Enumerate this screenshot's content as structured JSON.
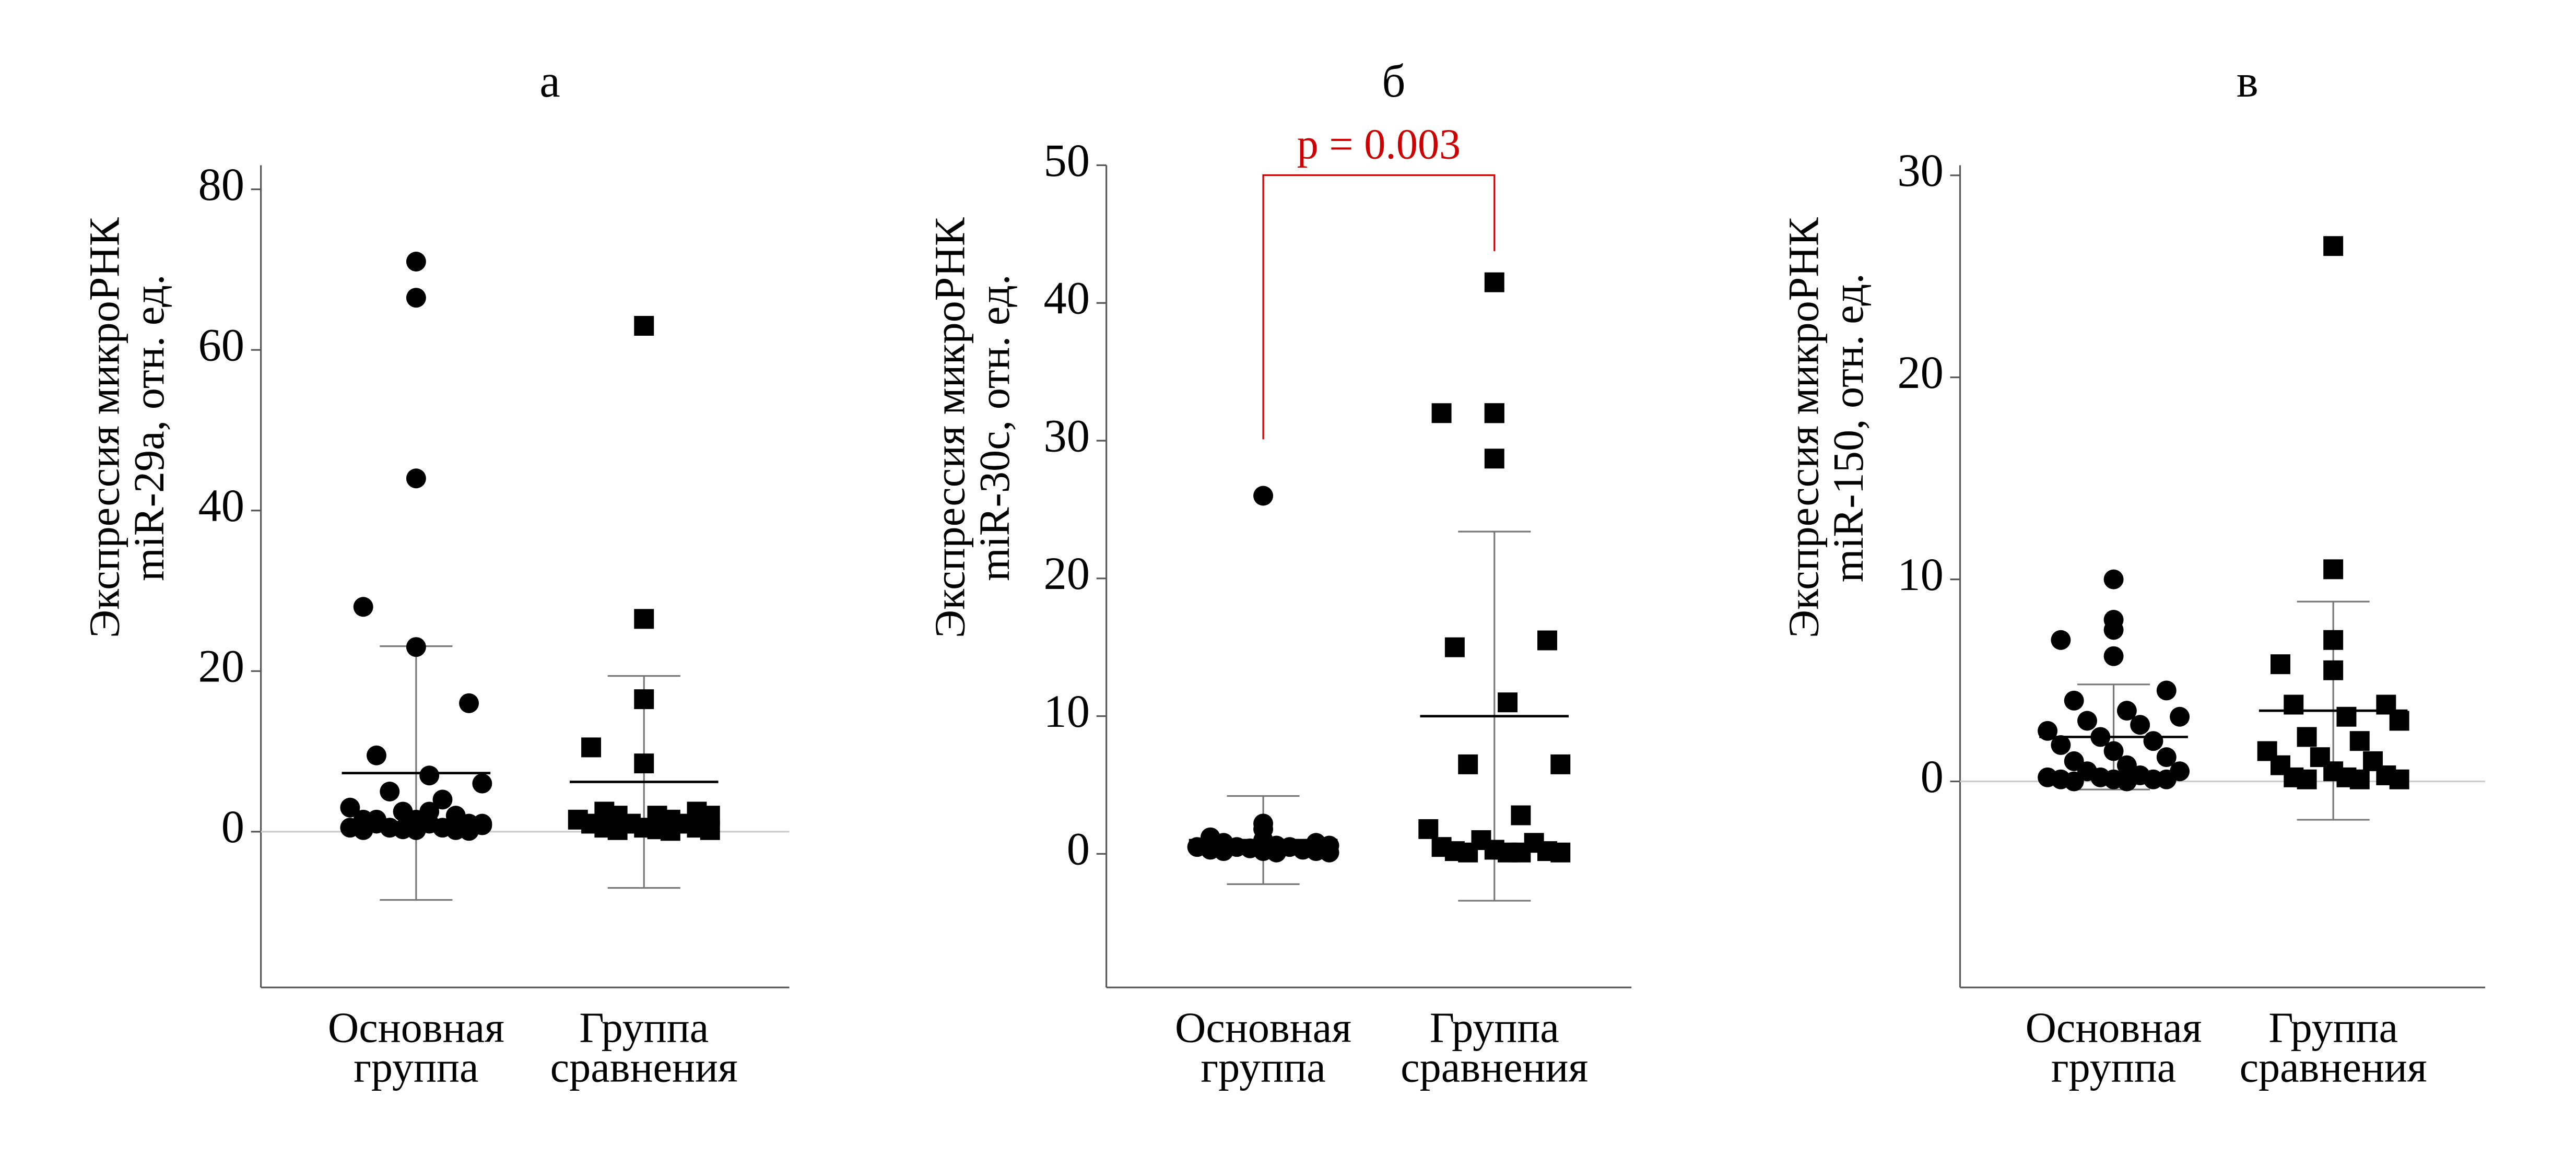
{
  "chart_data": [
    {
      "type": "strip",
      "title": "а",
      "ylabel": [
        "Экспрессия микроРНК",
        "miR-29a, отн. ед."
      ],
      "categories": [
        [
          "Основная",
          "группа"
        ],
        [
          "Группа",
          "сравнения"
        ]
      ],
      "ylim": [
        -19.4,
        83
      ],
      "yticks": [
        0,
        20,
        40,
        60,
        80
      ],
      "zero_line": true,
      "series": [
        {
          "marker": "circle",
          "color": "#000000",
          "mean": 7.3,
          "sd": 15.8,
          "values": [
            71,
            66.5,
            44,
            28,
            23,
            16,
            9.5,
            7,
            6,
            5,
            4,
            3,
            2.5,
            2,
            1.5,
            1.5,
            1,
            1,
            1,
            0.8,
            0.5,
            0.5,
            0.5,
            0.3,
            0.2,
            0.2,
            0.2,
            0.1,
            1.5,
            2.5,
            1,
            0.5
          ]
        },
        {
          "marker": "square",
          "color": "#000000",
          "mean": 6.2,
          "sd": 13.2,
          "values": [
            63,
            26.5,
            16.5,
            10.5,
            8.5,
            2.5,
            2.5,
            2,
            2,
            2,
            1.5,
            1.5,
            1,
            1,
            1,
            0.5,
            0.5,
            0.5,
            0.3,
            0.2,
            0.2,
            0.1
          ]
        }
      ]
    },
    {
      "type": "strip",
      "title": "б",
      "ylabel": [
        "Экспрессия микроРНК",
        "miR-30c, отн. ед."
      ],
      "categories": [
        [
          "Основная",
          "группа"
        ],
        [
          "Группа",
          "сравнения"
        ]
      ],
      "ylim": [
        -9.7,
        50
      ],
      "yticks": [
        0,
        10,
        20,
        30,
        40,
        50
      ],
      "zero_line": false,
      "annotation": {
        "text": "p = 0.003",
        "color": "#cc0000"
      },
      "series": [
        {
          "marker": "circle",
          "color": "#000000",
          "mean": 1,
          "sd": 3.2,
          "values": [
            26,
            2.2,
            1.8,
            1.2,
            1,
            0.8,
            0.8,
            0.6,
            0.6,
            0.5,
            0.5,
            0.5,
            0.4,
            0.3,
            0.3,
            0.2,
            0.2,
            0.2,
            0.1,
            0.1
          ]
        },
        {
          "marker": "square",
          "color": "#000000",
          "mean": 10,
          "sd": 13.4,
          "values": [
            41.5,
            32,
            32,
            32,
            28.7,
            15.5,
            15,
            11,
            6.5,
            6.5,
            2.8,
            1.8,
            1,
            0.8,
            0.5,
            0.3,
            0.2,
            0.2,
            0.1,
            0.1,
            0.1,
            0.1
          ]
        }
      ]
    },
    {
      "type": "strip",
      "title": "в",
      "ylabel": [
        "Экспрессия микроРНК",
        "miR-150, отн. ед."
      ],
      "categories": [
        [
          "Основная",
          "группа"
        ],
        [
          "Группа",
          "сравнения"
        ]
      ],
      "ylim": [
        -10.2,
        30.5
      ],
      "yticks": [
        0,
        10,
        20,
        30
      ],
      "zero_line": true,
      "series": [
        {
          "marker": "circle",
          "color": "#000000",
          "mean": 2.2,
          "sd": 2.6,
          "values": [
            10,
            8,
            7.5,
            7,
            6.2,
            4.5,
            4,
            3.5,
            3.2,
            3,
            2.8,
            2.5,
            2.2,
            2,
            1.8,
            1.5,
            1.2,
            1,
            0.8,
            0.5,
            0.5,
            0.3,
            0.2,
            0.2,
            0.1,
            0.1,
            0.1,
            0.1,
            0,
            0
          ]
        },
        {
          "marker": "square",
          "color": "#000000",
          "mean": 3.5,
          "sd": 5.4,
          "values": [
            26.5,
            10.5,
            7,
            5.8,
            5.5,
            3.8,
            3.8,
            3.2,
            3,
            2.2,
            2,
            1.5,
            1.2,
            1,
            0.8,
            0.5,
            0.3,
            0.2,
            0.2,
            0.1,
            0.1,
            0.1
          ]
        }
      ]
    }
  ]
}
